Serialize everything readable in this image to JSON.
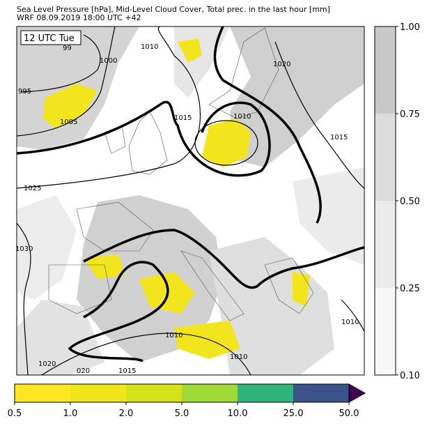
{
  "header": {
    "title": "Sea Level Pressure [hPa], Mid-Level Cloud Cover, Total prec. in the last hour [mm]",
    "subtitle": "WRF 08.09.2019 18:00 UTC +42"
  },
  "map": {
    "time_label": "12 UTC Tue",
    "isobar_labels": [
      "99",
      "1000",
      "1010",
      "995",
      "1005",
      "1015",
      "1010",
      "1020",
      "1015",
      "1025",
      "1030",
      "1010",
      "1010",
      "1020",
      "020",
      "1015",
      "1010"
    ]
  },
  "cloud_colorbar": {
    "ticks": [
      "1.00",
      "0.75",
      "0.50",
      "0.25",
      "0.10"
    ]
  },
  "precip_colorbar": {
    "ticks": [
      "0.5",
      "1.0",
      "2.0",
      "5.0",
      "10.0",
      "25.0",
      "50.0"
    ]
  }
}
